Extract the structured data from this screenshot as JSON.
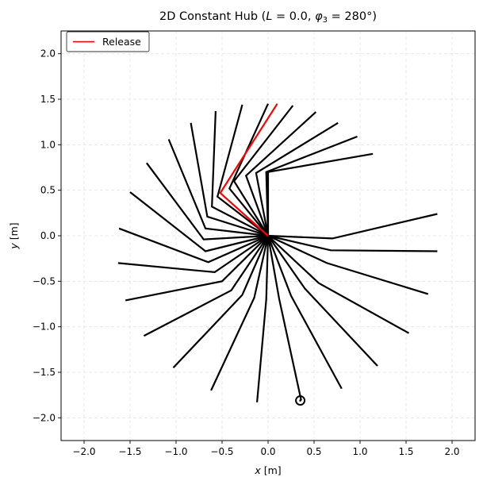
{
  "chart_data": {
    "type": "line",
    "title": "2D Constant Hub (L = 0.0, φ3 = 280°)",
    "title_parts": {
      "prefix": "2D Constant Hub (",
      "L": "L",
      "L_val": " = 0.0, ",
      "phi": "φ",
      "phi_sub": "3",
      "phi_val": " = 280°)"
    },
    "xlabel": {
      "var": "x",
      "unit": " [m]"
    },
    "ylabel": {
      "var": "y",
      "unit": " [m]"
    },
    "xlim": [
      -2.25,
      2.25
    ],
    "ylim": [
      -2.25,
      2.25
    ],
    "xticks": [
      -2.0,
      -1.5,
      -1.0,
      -0.5,
      0.0,
      0.5,
      1.0,
      1.5,
      2.0
    ],
    "yticks": [
      -2.0,
      -1.5,
      -1.0,
      -0.5,
      0.0,
      0.5,
      1.0,
      1.5,
      2.0
    ],
    "xtick_labels": [
      "−2.0",
      "−1.5",
      "−1.0",
      "−0.5",
      "0.0",
      "0.5",
      "1.0",
      "1.5",
      "2.0"
    ],
    "ytick_labels": [
      "−2.0",
      "−1.5",
      "−1.0",
      "−0.5",
      "0.0",
      "0.5",
      "1.0",
      "1.5",
      "2.0"
    ],
    "grid": true,
    "legend": {
      "placement": "top-left",
      "entries": [
        {
          "label": "Release",
          "color": "#ff0000"
        }
      ]
    },
    "hub": [
      0.0,
      0.0
    ],
    "arm_color": "#000000",
    "release_color": "#ff0000",
    "arms": [
      {
        "elbow": [
          -0.02,
          -0.7
        ],
        "tip": [
          -0.12,
          -1.83
        ]
      },
      {
        "elbow": [
          -0.15,
          -0.68
        ],
        "tip": [
          -0.62,
          -1.7
        ]
      },
      {
        "elbow": [
          -0.28,
          -0.65
        ],
        "tip": [
          -1.03,
          -1.45
        ]
      },
      {
        "elbow": [
          -0.4,
          -0.6
        ],
        "tip": [
          -1.35,
          -1.1
        ]
      },
      {
        "elbow": [
          -0.5,
          -0.5
        ],
        "tip": [
          -1.55,
          -0.71
        ]
      },
      {
        "elbow": [
          -0.58,
          -0.4
        ],
        "tip": [
          -1.63,
          -0.3
        ]
      },
      {
        "elbow": [
          -0.65,
          -0.29
        ],
        "tip": [
          -1.62,
          0.08
        ]
      },
      {
        "elbow": [
          -0.68,
          -0.17
        ],
        "tip": [
          -1.5,
          0.48
        ]
      },
      {
        "elbow": [
          -0.7,
          -0.04
        ],
        "tip": [
          -1.32,
          0.8
        ]
      },
      {
        "elbow": [
          -0.68,
          0.08
        ],
        "tip": [
          -1.08,
          1.06
        ]
      },
      {
        "elbow": [
          -0.66,
          0.21
        ],
        "tip": [
          -0.84,
          1.24
        ]
      },
      {
        "elbow": [
          -0.61,
          0.32
        ],
        "tip": [
          -0.57,
          1.37
        ]
      },
      {
        "elbow": [
          -0.55,
          0.43
        ],
        "tip": [
          -0.28,
          1.44
        ]
      },
      {
        "elbow": [
          -0.42,
          0.52
        ],
        "tip": [
          0.0,
          1.45
        ]
      },
      {
        "elbow": [
          -0.37,
          0.6
        ],
        "tip": [
          0.27,
          1.43
        ]
      },
      {
        "elbow": [
          -0.24,
          0.66
        ],
        "tip": [
          0.52,
          1.36
        ]
      },
      {
        "elbow": [
          -0.13,
          0.69
        ],
        "tip": [
          0.76,
          1.24
        ]
      },
      {
        "elbow": [
          -0.02,
          0.7
        ],
        "tip": [
          0.97,
          1.09
        ]
      },
      {
        "elbow": [
          0.0,
          0.7
        ],
        "tip": [
          1.14,
          0.9
        ]
      },
      {
        "elbow": [
          0.7,
          -0.03
        ],
        "tip": [
          1.84,
          0.24
        ]
      },
      {
        "elbow": [
          0.68,
          -0.16
        ],
        "tip": [
          1.84,
          -0.17
        ]
      },
      {
        "elbow": [
          0.64,
          -0.3
        ],
        "tip": [
          1.74,
          -0.64
        ]
      },
      {
        "elbow": [
          0.55,
          -0.52
        ],
        "tip": [
          1.53,
          -1.07
        ]
      },
      {
        "elbow": [
          0.4,
          -0.58
        ],
        "tip": [
          1.19,
          -1.43
        ]
      },
      {
        "elbow": [
          0.25,
          -0.66
        ],
        "tip": [
          0.8,
          -1.68
        ]
      },
      {
        "elbow": [
          0.12,
          -0.69
        ],
        "tip": [
          0.36,
          -1.81
        ]
      }
    ],
    "release_arm": {
      "elbow": [
        -0.52,
        0.47
      ],
      "tip": [
        0.1,
        1.45
      ]
    },
    "marker": {
      "x": 0.35,
      "y": -1.81
    }
  }
}
